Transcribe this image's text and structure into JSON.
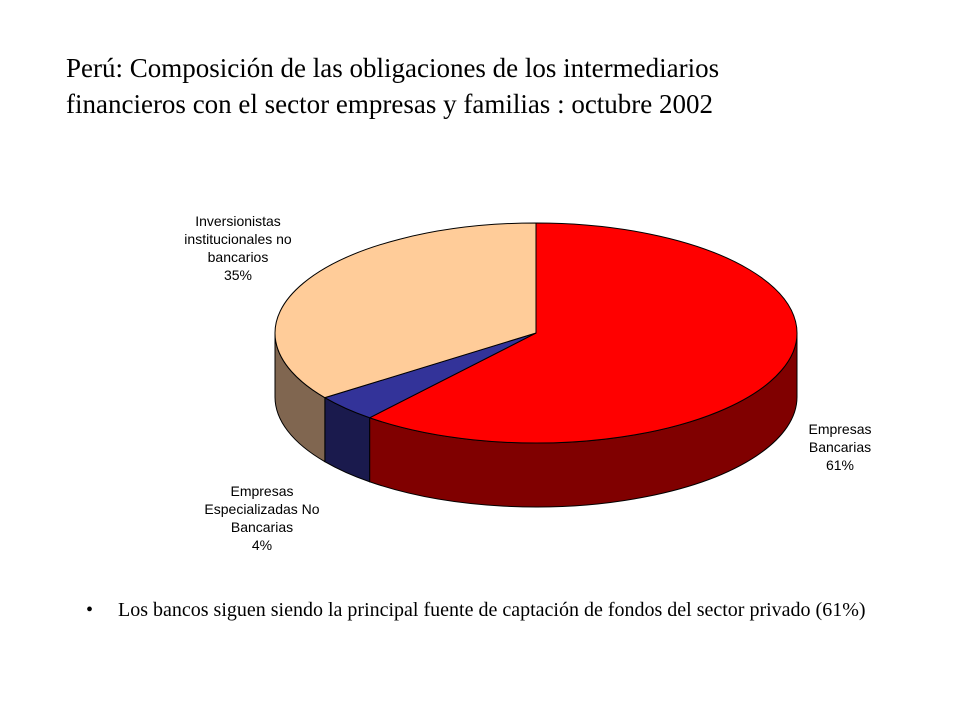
{
  "title": {
    "line1": "Perú: Composición de las obligaciones de los intermediarios",
    "line2": "financieros con el sector empresas y familias : octubre 2002"
  },
  "chart_data": {
    "type": "pie",
    "title": "Perú: Composición de las obligaciones de los intermediarios financieros con el sector empresas y familias : octubre 2002",
    "three_d": true,
    "slices": [
      {
        "label_lines": [
          "Empresas",
          "Bancarias",
          "61%"
        ],
        "value": 61,
        "color": "#ff0000",
        "side_color": "#800000"
      },
      {
        "label_lines": [
          "Empresas",
          "Especializadas No",
          "Bancarias",
          "4%"
        ],
        "value": 4,
        "color": "#333399",
        "side_color": "#1a1a4d"
      },
      {
        "label_lines": [
          "Inversionistas",
          "institucionales no",
          "bancarios",
          "35%"
        ],
        "value": 35,
        "color": "#ffcc99",
        "side_color": "#806650"
      }
    ]
  },
  "bullet": {
    "symbol": "•",
    "text": "Los bancos siguen siendo la principal fuente de captación de fondos del sector privado (61%)"
  }
}
